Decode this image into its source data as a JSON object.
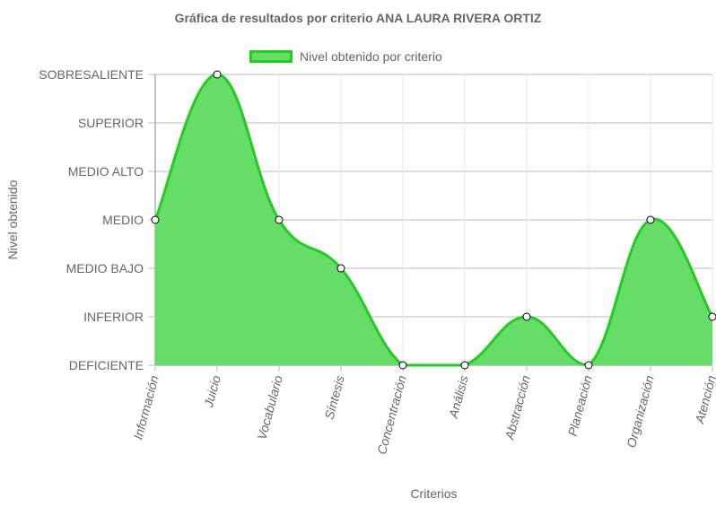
{
  "title": "Gráfica de resultados por criterio ANA LAURA RIVERA ORTIZ",
  "legend": {
    "label": "Nivel obtenido por criterio"
  },
  "colors": {
    "line": "#22cc22",
    "fill": "#66dd66",
    "grid": "#e6e6e6",
    "axis": "#888888",
    "text": "#666666"
  },
  "chart_data": {
    "type": "area",
    "title": "Gráfica de resultados por criterio ANA LAURA RIVERA ORTIZ",
    "xlabel": "Criterios",
    "ylabel": "Nivel obtenido",
    "levels": [
      "DEFICIENTE",
      "INFERIOR",
      "MEDIO BAJO",
      "MEDIO",
      "MEDIO ALTO",
      "SUPERIOR",
      "SOBRESALIENTE"
    ],
    "categories": [
      "Información",
      "Juicio",
      "Vocabulario",
      "Síntesis",
      "Concentración",
      "Análisis",
      "Abstracción",
      "Planeación",
      "Organización",
      "Atención"
    ],
    "series": [
      {
        "name": "Nivel obtenido por criterio",
        "values": [
          "MEDIO",
          "SOBRESALIENTE",
          "MEDIO",
          "MEDIO BAJO",
          "DEFICIENTE",
          "DEFICIENTE",
          "INFERIOR",
          "DEFICIENTE",
          "MEDIO",
          "INFERIOR"
        ]
      }
    ],
    "grid": true,
    "legend_position": "top"
  }
}
